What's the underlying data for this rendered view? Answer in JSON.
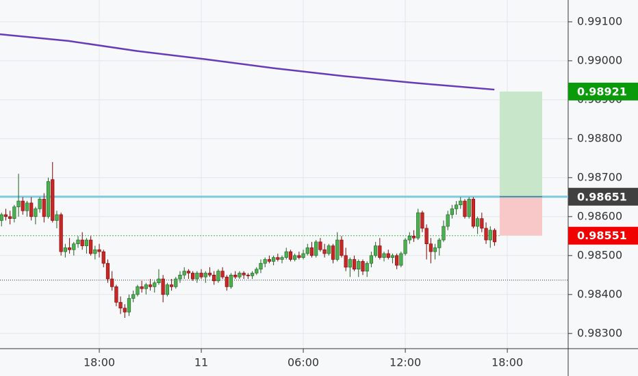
{
  "chart_data": {
    "type": "candlestick",
    "x": [
      0.25,
      0.5,
      0.75,
      1,
      1.25,
      1.5,
      1.75,
      2,
      2.25,
      2.5,
      2.75,
      3,
      3.25,
      3.5,
      3.75,
      4,
      4.25,
      4.5,
      4.75,
      5,
      5.25,
      5.5,
      5.75,
      6,
      6.25,
      6.5,
      6.75,
      7,
      7.25,
      7.5,
      7.75,
      8,
      8.25,
      8.5,
      8.75,
      9,
      9.25,
      9.5,
      9.75,
      10,
      10.25,
      10.5,
      10.75,
      11,
      11.25,
      11.5,
      11.75,
      12,
      12.25,
      12.5,
      12.75,
      13,
      13.25,
      13.5,
      13.75,
      14,
      14.25,
      14.5,
      14.75,
      15,
      15.25,
      15.5,
      15.75,
      16,
      16.25,
      16.5,
      16.75,
      17,
      17.25,
      17.5,
      17.75,
      18,
      18.25,
      18.5,
      18.75,
      19,
      19.25,
      19.5,
      19.75,
      20,
      20.25,
      20.5,
      20.75,
      21,
      21.25,
      21.5,
      21.75,
      22,
      22.25,
      22.5,
      22.75,
      23,
      23.25,
      23.5,
      23.75,
      24,
      24.25,
      24.5,
      24.75,
      25,
      25.25,
      25.5,
      25.75,
      26,
      26.25,
      26.5,
      26.75,
      27,
      27.25,
      27.5,
      27.75,
      28,
      28.25,
      28.5,
      28.75,
      29,
      29.25
    ],
    "candles": [
      [
        0.9859,
        0.9861,
        0.98575,
        0.98605
      ],
      [
        0.98605,
        0.9862,
        0.9859,
        0.986
      ],
      [
        0.986,
        0.98615,
        0.9858,
        0.98595
      ],
      [
        0.98595,
        0.9863,
        0.98585,
        0.98625
      ],
      [
        0.98625,
        0.9871,
        0.986,
        0.9864
      ],
      [
        0.9864,
        0.9865,
        0.98605,
        0.98615
      ],
      [
        0.98615,
        0.9864,
        0.986,
        0.98635
      ],
      [
        0.98635,
        0.9865,
        0.9859,
        0.986
      ],
      [
        0.986,
        0.98625,
        0.9858,
        0.9862
      ],
      [
        0.9862,
        0.9865,
        0.9861,
        0.98645
      ],
      [
        0.98645,
        0.9866,
        0.98585,
        0.986
      ],
      [
        0.986,
        0.987,
        0.98595,
        0.9869
      ],
      [
        0.98695,
        0.9874,
        0.98585,
        0.9859
      ],
      [
        0.9859,
        0.98615,
        0.9857,
        0.98605
      ],
      [
        0.98605,
        0.9861,
        0.985,
        0.9851
      ],
      [
        0.9851,
        0.9853,
        0.98495,
        0.9852
      ],
      [
        0.9852,
        0.98545,
        0.98505,
        0.98515
      ],
      [
        0.98515,
        0.98535,
        0.985,
        0.9853
      ],
      [
        0.9853,
        0.9855,
        0.9852,
        0.9854
      ],
      [
        0.9854,
        0.9856,
        0.98515,
        0.98525
      ],
      [
        0.98525,
        0.98545,
        0.98505,
        0.9854
      ],
      [
        0.9854,
        0.9855,
        0.985,
        0.98505
      ],
      [
        0.98505,
        0.98525,
        0.9849,
        0.98515
      ],
      [
        0.98515,
        0.9853,
        0.98495,
        0.9851
      ],
      [
        0.9851,
        0.98515,
        0.9847,
        0.9848
      ],
      [
        0.9848,
        0.9849,
        0.9843,
        0.9844
      ],
      [
        0.9844,
        0.9846,
        0.9841,
        0.9842
      ],
      [
        0.9842,
        0.98425,
        0.9837,
        0.9838
      ],
      [
        0.9838,
        0.98395,
        0.9835,
        0.98365
      ],
      [
        0.98365,
        0.98375,
        0.9834,
        0.98355
      ],
      [
        0.98355,
        0.984,
        0.98345,
        0.9839
      ],
      [
        0.9839,
        0.9841,
        0.9838,
        0.984
      ],
      [
        0.984,
        0.98425,
        0.98395,
        0.9842
      ],
      [
        0.9842,
        0.98435,
        0.98405,
        0.98415
      ],
      [
        0.98415,
        0.9843,
        0.984,
        0.98425
      ],
      [
        0.98425,
        0.9844,
        0.9841,
        0.9842
      ],
      [
        0.9842,
        0.98435,
        0.98405,
        0.9843
      ],
      [
        0.9843,
        0.98465,
        0.98425,
        0.9844
      ],
      [
        0.9844,
        0.9845,
        0.9838,
        0.984
      ],
      [
        0.984,
        0.9843,
        0.98395,
        0.98425
      ],
      [
        0.98425,
        0.9844,
        0.9841,
        0.9842
      ],
      [
        0.9842,
        0.98445,
        0.98415,
        0.9844
      ],
      [
        0.9844,
        0.9846,
        0.9843,
        0.9845
      ],
      [
        0.9845,
        0.9847,
        0.9844,
        0.9846
      ],
      [
        0.9846,
        0.98465,
        0.9844,
        0.98455
      ],
      [
        0.98455,
        0.9846,
        0.98435,
        0.9844
      ],
      [
        0.9844,
        0.9846,
        0.9843,
        0.98455
      ],
      [
        0.98455,
        0.98465,
        0.9844,
        0.98445
      ],
      [
        0.98445,
        0.9846,
        0.9843,
        0.98455
      ],
      [
        0.98455,
        0.9847,
        0.98445,
        0.9845
      ],
      [
        0.9845,
        0.9846,
        0.98425,
        0.98435
      ],
      [
        0.98435,
        0.98465,
        0.9843,
        0.9846
      ],
      [
        0.9846,
        0.9847,
        0.9844,
        0.98445
      ],
      [
        0.98445,
        0.9845,
        0.9841,
        0.9842
      ],
      [
        0.9842,
        0.98455,
        0.98415,
        0.9845
      ],
      [
        0.9845,
        0.9846,
        0.9844,
        0.98445
      ],
      [
        0.98445,
        0.9846,
        0.9844,
        0.98455
      ],
      [
        0.98455,
        0.9846,
        0.9844,
        0.9845
      ],
      [
        0.9845,
        0.98455,
        0.9844,
        0.98448
      ],
      [
        0.98448,
        0.9846,
        0.9844,
        0.98455
      ],
      [
        0.98455,
        0.9847,
        0.9845,
        0.98465
      ],
      [
        0.98465,
        0.9849,
        0.98455,
        0.9848
      ],
      [
        0.9848,
        0.98495,
        0.9847,
        0.9849
      ],
      [
        0.9849,
        0.985,
        0.9848,
        0.98485
      ],
      [
        0.98485,
        0.985,
        0.98475,
        0.98495
      ],
      [
        0.98495,
        0.98505,
        0.98485,
        0.9849
      ],
      [
        0.9849,
        0.985,
        0.9848,
        0.98495
      ],
      [
        0.98495,
        0.9852,
        0.9849,
        0.9851
      ],
      [
        0.9851,
        0.98515,
        0.98485,
        0.9849
      ],
      [
        0.9849,
        0.98505,
        0.98485,
        0.985
      ],
      [
        0.985,
        0.9851,
        0.9849,
        0.98495
      ],
      [
        0.98495,
        0.98515,
        0.9849,
        0.98505
      ],
      [
        0.98505,
        0.9853,
        0.985,
        0.9852
      ],
      [
        0.9852,
        0.98535,
        0.98495,
        0.985
      ],
      [
        0.985,
        0.9854,
        0.98495,
        0.98535
      ],
      [
        0.98535,
        0.98545,
        0.9851,
        0.98515
      ],
      [
        0.98515,
        0.9853,
        0.98495,
        0.98505
      ],
      [
        0.98505,
        0.9853,
        0.985,
        0.98525
      ],
      [
        0.98525,
        0.9853,
        0.9848,
        0.9849
      ],
      [
        0.9849,
        0.9856,
        0.98485,
        0.9854
      ],
      [
        0.9854,
        0.9855,
        0.98495,
        0.985
      ],
      [
        0.985,
        0.9852,
        0.9846,
        0.9847
      ],
      [
        0.9847,
        0.98495,
        0.98445,
        0.9849
      ],
      [
        0.9849,
        0.985,
        0.9846,
        0.98465
      ],
      [
        0.98465,
        0.9849,
        0.98445,
        0.98485
      ],
      [
        0.98485,
        0.9849,
        0.9845,
        0.9846
      ],
      [
        0.9846,
        0.98485,
        0.98445,
        0.9848
      ],
      [
        0.9848,
        0.9851,
        0.9847,
        0.985
      ],
      [
        0.985,
        0.98535,
        0.98495,
        0.98525
      ],
      [
        0.98525,
        0.98545,
        0.9849,
        0.98495
      ],
      [
        0.98495,
        0.9851,
        0.98485,
        0.98505
      ],
      [
        0.98505,
        0.98515,
        0.9849,
        0.98495
      ],
      [
        0.98495,
        0.98505,
        0.9848,
        0.985
      ],
      [
        0.985,
        0.98505,
        0.98465,
        0.98475
      ],
      [
        0.98475,
        0.9851,
        0.9847,
        0.98505
      ],
      [
        0.98505,
        0.98545,
        0.985,
        0.9854
      ],
      [
        0.9854,
        0.9856,
        0.9853,
        0.9855
      ],
      [
        0.9855,
        0.98565,
        0.98535,
        0.98545
      ],
      [
        0.98545,
        0.9862,
        0.9854,
        0.9861
      ],
      [
        0.9861,
        0.98615,
        0.9856,
        0.9857
      ],
      [
        0.9857,
        0.9858,
        0.9849,
        0.9853
      ],
      [
        0.9853,
        0.98545,
        0.9848,
        0.9851
      ],
      [
        0.9851,
        0.9853,
        0.9849,
        0.9852
      ],
      [
        0.9852,
        0.98545,
        0.985,
        0.9854
      ],
      [
        0.9854,
        0.9859,
        0.98535,
        0.98575
      ],
      [
        0.98575,
        0.98615,
        0.98565,
        0.98605
      ],
      [
        0.98605,
        0.9863,
        0.98595,
        0.9862
      ],
      [
        0.9862,
        0.9864,
        0.98605,
        0.9863
      ],
      [
        0.9863,
        0.9865,
        0.9862,
        0.9864
      ],
      [
        0.9864,
        0.98645,
        0.98595,
        0.986
      ],
      [
        0.986,
        0.9865,
        0.98595,
        0.98645
      ],
      [
        0.98645,
        0.9865,
        0.9857,
        0.98575
      ],
      [
        0.98575,
        0.986,
        0.98555,
        0.98595
      ],
      [
        0.98595,
        0.9861,
        0.9856,
        0.9857
      ],
      [
        0.9857,
        0.98585,
        0.9853,
        0.9854
      ],
      [
        0.9854,
        0.98575,
        0.9852,
        0.98565
      ],
      [
        0.98565,
        0.9857,
        0.98525,
        0.98535
      ]
    ],
    "up_color": "#4caf50",
    "up_border": "#1b5e20",
    "down_color": "#c62828",
    "down_border": "#7f0000",
    "moving_average": {
      "color": "#673ab7",
      "x": [
        0.16,
        4.19,
        8.22,
        12.24,
        16.27,
        20.3,
        24.32,
        29.24
      ],
      "values": [
        0.99068,
        0.99051,
        0.99025,
        0.99004,
        0.98981,
        0.98961,
        0.98944,
        0.98926
      ]
    },
    "position": {
      "x": [
        29.55,
        32.05
      ],
      "entry": 0.98651,
      "target": 0.98921,
      "stop": 0.98551,
      "entry_color": "#7ec8e3",
      "entry_tag_color": "#404040",
      "target_color": "#0a9a0a",
      "stop_color": "#f00000",
      "target_zone_color": "#c8e6c9",
      "stop_zone_color": "#f8c8c8",
      "stop_line_color": "#4caf50"
    },
    "levels": [
      {
        "value": 0.98437,
        "color": "#333333"
      }
    ],
    "xlim": [
      0.16,
      33.58
    ],
    "ylim": [
      0.98261,
      0.99156
    ],
    "xticks": [
      {
        "value": 6,
        "label": "18:00"
      },
      {
        "value": 12,
        "label": "11"
      },
      {
        "value": 18,
        "label": "06:00"
      },
      {
        "value": 24,
        "label": "12:00"
      },
      {
        "value": 30,
        "label": "18:00"
      }
    ],
    "yticks": [
      {
        "value": 0.991,
        "label": "0.99100"
      },
      {
        "value": 0.99,
        "label": "0.99000"
      },
      {
        "value": 0.989,
        "label": "0.98900"
      },
      {
        "value": 0.988,
        "label": "0.98800"
      },
      {
        "value": 0.987,
        "label": "0.98700"
      },
      {
        "value": 0.986,
        "label": "0.98600"
      },
      {
        "value": 0.985,
        "label": "0.98500"
      },
      {
        "value": 0.984,
        "label": "0.98400"
      },
      {
        "value": 0.983,
        "label": "0.98300"
      }
    ],
    "grid": true
  }
}
